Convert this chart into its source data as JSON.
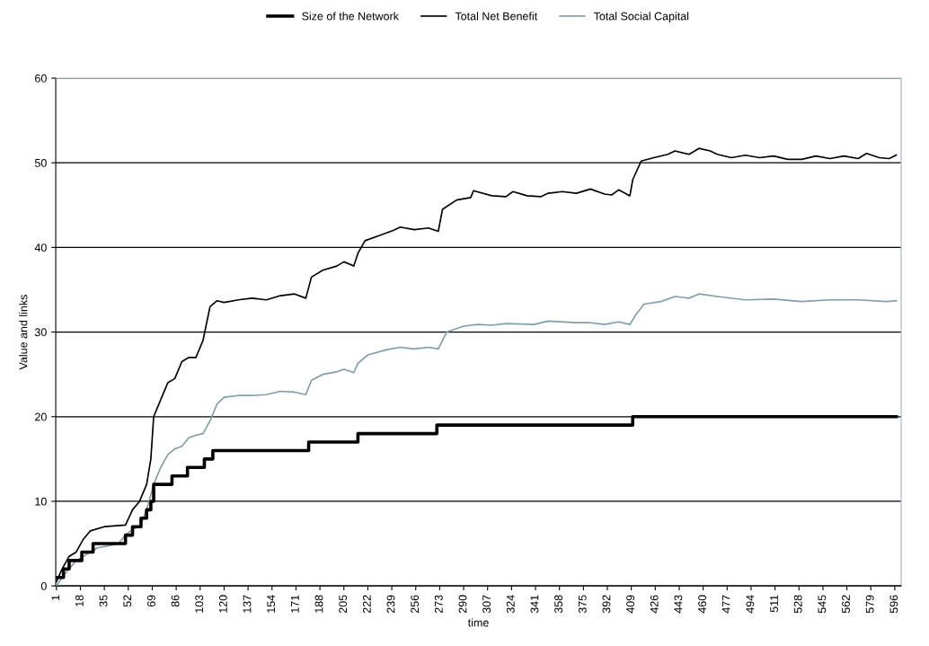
{
  "chart_data": {
    "type": "line",
    "xlabel": "time",
    "ylabel": "Value and links",
    "xlim": [
      0.5,
      600.5
    ],
    "xticks": [
      1,
      18,
      35,
      52,
      69,
      86,
      103,
      120,
      137,
      154,
      171,
      188,
      205,
      222,
      239,
      256,
      273,
      290,
      307,
      324,
      341,
      358,
      375,
      392,
      409,
      426,
      443,
      460,
      477,
      494,
      511,
      528,
      545,
      562,
      579,
      596
    ],
    "ylim": [
      0,
      60
    ],
    "yticks": [
      0,
      10,
      20,
      30,
      40,
      50,
      60
    ],
    "grid": "y",
    "legend": "top",
    "series": [
      {
        "name": "Size of the Network",
        "type": "step",
        "color": "#000000",
        "x": [
          1,
          6,
          10,
          19,
          27,
          50,
          55,
          61,
          65,
          68,
          70,
          83,
          94,
          106,
          112,
          180,
          215,
          271,
          410,
          597
        ],
        "values": [
          1,
          2,
          3,
          4,
          5,
          6,
          7,
          8,
          9,
          10,
          12,
          13,
          14,
          15,
          16,
          17,
          18,
          19,
          20,
          20
        ]
      },
      {
        "name": "Total Net Benefit",
        "color": "#000000",
        "x": [
          1,
          5,
          10,
          15,
          20,
          25,
          35,
          50,
          55,
          60,
          65,
          68,
          70,
          75,
          80,
          85,
          90,
          95,
          100,
          105,
          110,
          115,
          120,
          130,
          140,
          150,
          160,
          170,
          178,
          182,
          190,
          200,
          205,
          212,
          215,
          220,
          230,
          240,
          245,
          255,
          265,
          272,
          275,
          285,
          295,
          297,
          310,
          320,
          325,
          335,
          345,
          350,
          360,
          370,
          380,
          390,
          395,
          400,
          408,
          410,
          416,
          425,
          435,
          440,
          450,
          457,
          465,
          470,
          480,
          490,
          500,
          510,
          520,
          530,
          540,
          550,
          560,
          570,
          576,
          585,
          592,
          597
        ],
        "values": [
          0.5,
          2,
          3.5,
          4,
          5.5,
          6.5,
          7,
          7.2,
          9,
          10,
          12,
          15,
          20,
          22,
          24,
          24.5,
          26.5,
          27,
          27,
          29,
          33,
          33.7,
          33.5,
          33.8,
          34,
          33.8,
          34.3,
          34.5,
          34,
          36.5,
          37.3,
          37.8,
          38.3,
          37.8,
          39.3,
          40.8,
          41.4,
          42.0,
          42.4,
          42.1,
          42.3,
          41.9,
          44.5,
          45.6,
          45.9,
          46.7,
          46.1,
          46.0,
          46.6,
          46.1,
          46.0,
          46.4,
          46.6,
          46.4,
          46.9,
          46.3,
          46.2,
          46.8,
          46.1,
          48,
          50.2,
          50.6,
          51.0,
          51.4,
          51.0,
          51.7,
          51.4,
          51.0,
          50.6,
          50.9,
          50.6,
          50.8,
          50.4,
          50.4,
          50.8,
          50.5,
          50.8,
          50.5,
          51.1,
          50.6,
          50.5,
          50.9
        ]
      },
      {
        "name": "Total Social Capital",
        "color": "#7f9faa",
        "x": [
          1,
          5,
          10,
          15,
          20,
          30,
          40,
          45,
          50,
          55,
          60,
          65,
          70,
          75,
          80,
          85,
          90,
          95,
          100,
          105,
          110,
          115,
          120,
          130,
          140,
          150,
          160,
          170,
          178,
          182,
          190,
          200,
          205,
          212,
          215,
          222,
          235,
          245,
          255,
          265,
          272,
          278,
          290,
          300,
          310,
          320,
          340,
          350,
          370,
          380,
          390,
          400,
          408,
          412,
          418,
          430,
          440,
          450,
          457,
          470,
          490,
          510,
          530,
          550,
          570,
          590,
          597
        ],
        "values": [
          0,
          1,
          2,
          3,
          3.5,
          4.5,
          4.8,
          5,
          6,
          6.7,
          7,
          9,
          12,
          14,
          15.5,
          16.2,
          16.5,
          17.5,
          17.8,
          18,
          19.5,
          21.5,
          22.3,
          22.5,
          22.5,
          22.6,
          23,
          22.9,
          22.6,
          24.3,
          25,
          25.3,
          25.6,
          25.2,
          26.3,
          27.3,
          27.9,
          28.2,
          28.0,
          28.2,
          28.0,
          30,
          30.7,
          30.9,
          30.8,
          31.0,
          30.9,
          31.3,
          31.1,
          31.1,
          30.9,
          31.2,
          30.9,
          32,
          33.3,
          33.6,
          34.2,
          34.0,
          34.5,
          34.2,
          33.8,
          33.9,
          33.6,
          33.8,
          33.8,
          33.6,
          33.7
        ]
      }
    ]
  }
}
